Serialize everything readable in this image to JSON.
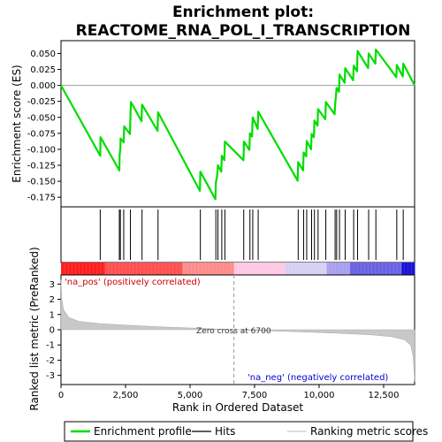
{
  "chart_data": {
    "type": "line",
    "title": "Enrichment plot:\nREACTOME_RNA_POL_I_TRANSCRIPTION",
    "title_lines": [
      "Enrichment plot:",
      "REACTOME_RNA_POL_I_TRANSCRIPTION"
    ],
    "xlabel": "Rank in Ordered Dataset",
    "xlim": [
      0,
      14000
    ],
    "x_ticks": [
      0,
      2500,
      5000,
      7500,
      10000,
      12500
    ],
    "x_tick_labels": [
      "0",
      "2,500",
      "5,000",
      "7,500",
      "10,000",
      "12,500"
    ],
    "es_panel": {
      "ylabel": "Enrichment score (ES)",
      "ylim": [
        -0.19,
        0.07
      ],
      "y_ticks": [
        0.05,
        0.025,
        0.0,
        -0.025,
        -0.05,
        -0.075,
        -0.1,
        -0.125,
        -0.15,
        -0.175
      ],
      "y_tick_labels": [
        "0.050",
        "0.025",
        "0.000",
        "-0.025",
        "-0.050",
        "-0.075",
        "-0.100",
        "-0.125",
        "-0.150",
        "-0.175"
      ],
      "series": [
        {
          "name": "Enrichment profile",
          "color": "#00dd00",
          "points": [
            [
              0,
              0.0
            ],
            [
              1520,
              -0.11
            ],
            [
              1530,
              -0.081
            ],
            [
              2260,
              -0.133
            ],
            [
              2270,
              -0.109
            ],
            [
              2300,
              -0.098
            ],
            [
              2310,
              -0.083
            ],
            [
              2430,
              -0.089
            ],
            [
              2450,
              -0.064
            ],
            [
              2670,
              -0.076
            ],
            [
              2690,
              -0.052
            ],
            [
              2710,
              -0.026
            ],
            [
              3120,
              -0.056
            ],
            [
              3140,
              -0.03
            ],
            [
              3740,
              -0.071
            ],
            [
              3760,
              -0.042
            ],
            [
              5380,
              -0.165
            ],
            [
              5400,
              -0.135
            ],
            [
              5980,
              -0.178
            ],
            [
              6000,
              -0.152
            ],
            [
              6050,
              -0.142
            ],
            [
              6080,
              -0.125
            ],
            [
              6210,
              -0.135
            ],
            [
              6230,
              -0.11
            ],
            [
              6330,
              -0.117
            ],
            [
              6350,
              -0.088
            ],
            [
              7070,
              -0.117
            ],
            [
              7080,
              -0.104
            ],
            [
              7090,
              -0.088
            ],
            [
              7300,
              -0.101
            ],
            [
              7320,
              -0.075
            ],
            [
              7400,
              -0.08
            ],
            [
              7430,
              -0.05
            ],
            [
              7620,
              -0.068
            ],
            [
              7640,
              -0.041
            ],
            [
              9170,
              -0.149
            ],
            [
              9190,
              -0.12
            ],
            [
              9380,
              -0.133
            ],
            [
              9400,
              -0.105
            ],
            [
              9500,
              -0.111
            ],
            [
              9520,
              -0.087
            ],
            [
              9690,
              -0.1
            ],
            [
              9710,
              -0.076
            ],
            [
              9800,
              -0.081
            ],
            [
              9820,
              -0.055
            ],
            [
              9940,
              -0.063
            ],
            [
              9960,
              -0.037
            ],
            [
              10240,
              -0.053
            ],
            [
              10260,
              -0.026
            ],
            [
              10600,
              -0.045
            ],
            [
              10620,
              -0.03
            ],
            [
              10650,
              -0.018
            ],
            [
              10680,
              -0.004
            ],
            [
              10770,
              -0.01
            ],
            [
              10790,
              0.017
            ],
            [
              10990,
              0.004
            ],
            [
              11010,
              0.027
            ],
            [
              11320,
              0.008
            ],
            [
              11340,
              0.031
            ],
            [
              11470,
              0.022
            ],
            [
              11490,
              0.054
            ],
            [
              11900,
              0.027
            ],
            [
              11920,
              0.05
            ],
            [
              12180,
              0.034
            ],
            [
              12200,
              0.056
            ],
            [
              12990,
              0.013
            ],
            [
              13010,
              0.032
            ],
            [
              13240,
              0.014
            ],
            [
              13260,
              0.034
            ],
            [
              13700,
              0.0
            ]
          ]
        }
      ]
    },
    "hits": [
      1520,
      2260,
      2300,
      2430,
      2690,
      3140,
      3760,
      5400,
      6000,
      6080,
      6230,
      6350,
      7080,
      7320,
      7430,
      7640,
      9190,
      9400,
      9520,
      9710,
      9820,
      9960,
      10260,
      10620,
      10680,
      10790,
      11010,
      11340,
      11490,
      11920,
      12200,
      13010,
      13260
    ],
    "rank_bar_colors": [
      "#ff0000",
      "#ff9090",
      "#ffc8e8",
      "#d8d0f8",
      "#a8a0f0",
      "#5050e0",
      "#0000c8"
    ],
    "metric_panel": {
      "ylabel": "Ranked list metric (PreRanked)",
      "ylim": [
        -3.6,
        3.6
      ],
      "y_ticks": [
        3,
        2,
        1,
        0,
        -1,
        -2,
        -3
      ],
      "y_tick_labels": [
        "3",
        "2",
        "1",
        "0",
        "-1",
        "-2",
        "-3"
      ],
      "zero_cross_label": "Zero cross at 6700",
      "zero_cross": 6700,
      "pos_label": "'na_pos' (positively correlated)",
      "neg_label": "'na_neg' (negatively correlated)",
      "curve": [
        [
          0,
          3.3
        ],
        [
          30,
          2.0
        ],
        [
          100,
          1.3
        ],
        [
          300,
          0.8
        ],
        [
          700,
          0.55
        ],
        [
          1500,
          0.4
        ],
        [
          2500,
          0.3
        ],
        [
          4000,
          0.18
        ],
        [
          5500,
          0.08
        ],
        [
          6700,
          0.0
        ],
        [
          8000,
          -0.07
        ],
        [
          9500,
          -0.15
        ],
        [
          11000,
          -0.25
        ],
        [
          12000,
          -0.33
        ],
        [
          12800,
          -0.45
        ],
        [
          13300,
          -0.65
        ],
        [
          13550,
          -1.0
        ],
        [
          13650,
          -1.8
        ],
        [
          13700,
          -3.4
        ]
      ]
    },
    "legend": {
      "position": "bottom",
      "entries": [
        {
          "label": "Enrichment profile",
          "color": "#00dd00"
        },
        {
          "label": "Hits",
          "color": "#000000"
        },
        {
          "label": "Ranking metric scores",
          "color": "#bbbbbb"
        }
      ]
    }
  }
}
